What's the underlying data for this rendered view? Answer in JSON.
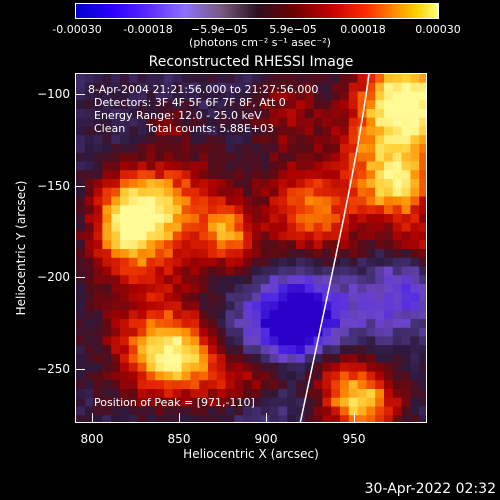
{
  "colorbar": {
    "ticks": [
      "-0.00030",
      "-0.00018",
      "−5.9e−05",
      "5.9e−05",
      "0.00018",
      "0.00030"
    ],
    "units": "(photons cm⁻² s⁻¹ asec⁻²)"
  },
  "title": "Reconstructed RHESSI Image",
  "annotation": {
    "line1": "8-Apr-2004 21:21:56.000 to 21:27:56.000",
    "line2": "Detectors: 3F 4F 5F 6F 7F 8F, Att 0",
    "line3": "Energy Range: 12.0 - 25.0 keV",
    "line4": "Clean      Total counts: 5.88E+03",
    "peak": "Position of Peak = [971,-110]"
  },
  "axes": {
    "xlabel": "Heliocentric X (arcsec)",
    "ylabel": "Heliocentric Y (arcsec)",
    "xticks": [
      "800",
      "850",
      "900",
      "950"
    ],
    "yticks": [
      "−100",
      "−150",
      "−200",
      "−250"
    ]
  },
  "footer": {
    "timestamp": "30-Apr-2022 02:32"
  },
  "colors": {
    "limb": "#ffffff",
    "background": "#000000"
  }
}
